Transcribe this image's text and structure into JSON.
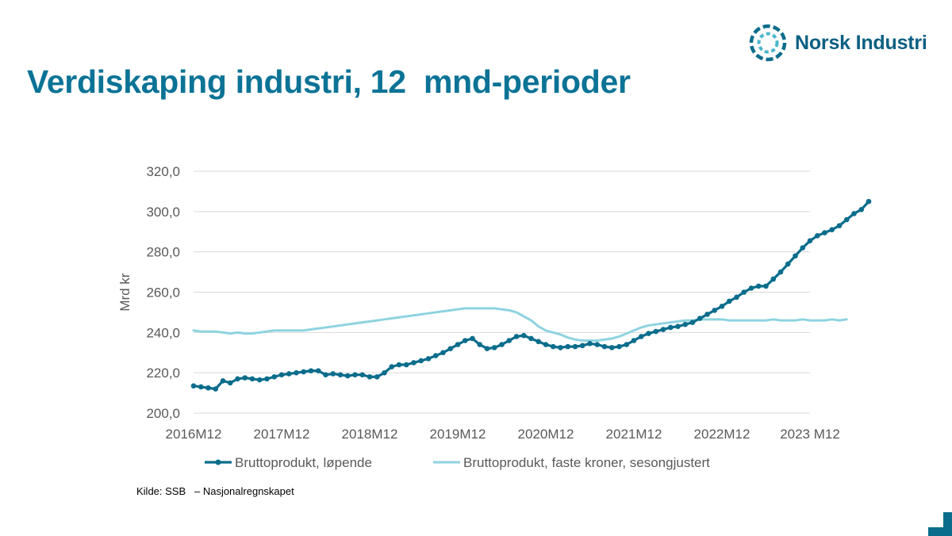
{
  "slide": {
    "title": "Verdiskaping industri, 12  mnd-perioder",
    "logo_text": "Norsk Industri",
    "source": "Kilde: SSB   – Nasjonalregnskapet"
  },
  "colors": {
    "title": "#0b7396",
    "series_1": "#0b6d8c",
    "series_2": "#8fd3e0",
    "grid": "#d9d9d9",
    "axis_text": "#595959"
  },
  "icons": [
    "norsk-industri-logo-icon",
    "corner-bracket-icon"
  ],
  "chart_data": {
    "type": "line",
    "ylabel": "Mrd kr",
    "ylim": [
      200,
      320
    ],
    "yticks": [
      "200,0",
      "220,0",
      "240,0",
      "260,0",
      "280,0",
      "300,0",
      "320,0"
    ],
    "xlim": [
      0,
      84
    ],
    "xticks": [
      {
        "x": 0,
        "label": "2016M12"
      },
      {
        "x": 12,
        "label": "2017M12"
      },
      {
        "x": 24,
        "label": "2018M12"
      },
      {
        "x": 36,
        "label": "2019M12"
      },
      {
        "x": 48,
        "label": "2020M12"
      },
      {
        "x": 60,
        "label": "2021M12"
      },
      {
        "x": 72,
        "label": "2022M12"
      },
      {
        "x": 84,
        "label": "2023 M12"
      }
    ],
    "grid": true,
    "legend_position": "bottom",
    "series": [
      {
        "name": "Bruttoprodukt, løpende",
        "markers": true,
        "values": [
          213.5,
          213,
          212.5,
          212,
          216,
          215,
          217,
          217.5,
          217,
          216.5,
          217,
          218,
          219,
          219.5,
          220,
          220.5,
          221,
          221,
          219,
          219.5,
          219,
          218.5,
          219,
          219,
          218,
          218,
          220,
          223,
          224,
          224,
          225,
          226,
          227,
          228.5,
          230,
          232,
          234,
          236,
          237,
          234,
          232,
          232.5,
          234,
          236,
          238,
          238.5,
          237,
          235.5,
          234,
          233,
          232.5,
          233,
          233,
          233.5,
          234.5,
          234,
          233,
          232.5,
          233,
          234,
          236,
          238,
          239.5,
          240.5,
          241.5,
          242.5,
          243,
          244,
          245,
          247,
          249,
          251,
          253,
          255.5,
          257.5,
          260,
          262,
          263,
          263,
          266.5,
          270,
          274,
          278,
          282,
          285.5,
          288,
          289.5,
          291,
          293,
          296,
          299,
          301,
          305
        ]
      },
      {
        "name": "Bruttoprodukt, faste kroner, sesongjustert",
        "markers": false,
        "values": [
          241,
          240.5,
          240.5,
          240.5,
          240,
          239.5,
          240,
          239.5,
          239.5,
          240,
          240.5,
          241,
          241,
          241,
          241,
          241,
          241.5,
          242,
          242.5,
          243,
          243.5,
          244,
          244.5,
          245,
          245.5,
          246,
          246.5,
          247,
          247.5,
          248,
          248.5,
          249,
          249.5,
          250,
          250.5,
          251,
          251.5,
          252,
          252,
          252,
          252,
          252,
          251.5,
          251,
          250,
          248,
          246,
          243,
          241,
          240,
          239,
          237.5,
          236.5,
          236,
          236,
          236,
          236.5,
          237,
          238,
          239.5,
          241,
          242.5,
          243.5,
          244,
          244.5,
          245,
          245.5,
          246,
          246,
          246.5,
          246.5,
          246.5,
          246.5,
          246,
          246,
          246,
          246,
          246,
          246,
          246.5,
          246,
          246,
          246,
          246.5,
          246,
          246,
          246,
          246.5,
          246,
          246.5
        ]
      }
    ]
  }
}
